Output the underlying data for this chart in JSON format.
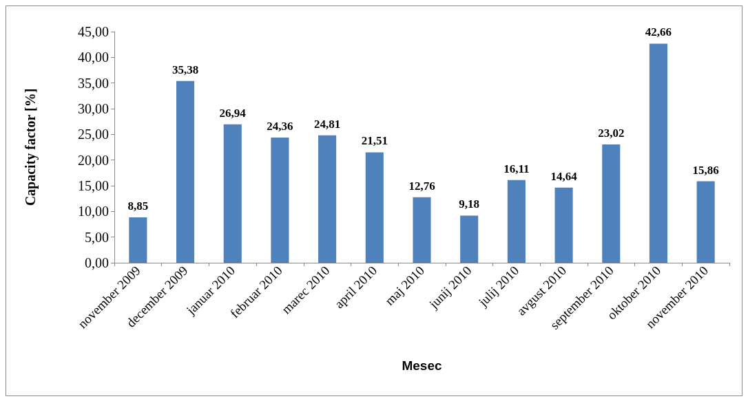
{
  "chart_data": {
    "type": "bar",
    "xlabel": "Mesec",
    "ylabel": "Capacity factor [%]",
    "categories": [
      "november 2009",
      "december 2009",
      "januar 2010",
      "februar 2010",
      "marec 2010",
      "april 2010",
      "maj 2010",
      "junij 2010",
      "julij 2010",
      "avgust 2010",
      "september 2010",
      "oktober 2010",
      "november 2010"
    ],
    "values": [
      8.85,
      35.38,
      26.94,
      24.36,
      24.81,
      21.51,
      12.76,
      9.18,
      16.11,
      14.64,
      23.02,
      42.66,
      15.86
    ],
    "value_labels": [
      "8,85",
      "35,38",
      "26,94",
      "24,36",
      "24,81",
      "21,51",
      "12,76",
      "9,18",
      "16,11",
      "14,64",
      "23,02",
      "42,66",
      "15,86"
    ],
    "color": "#4f81bd",
    "ylim": [
      0,
      45
    ],
    "yticks": [
      {
        "value": 0,
        "label": "0,00"
      },
      {
        "value": 5,
        "label": "5,00"
      },
      {
        "value": 10,
        "label": "10,00"
      },
      {
        "value": 15,
        "label": "15,00"
      },
      {
        "value": 20,
        "label": "20,00"
      },
      {
        "value": 25,
        "label": "25,00"
      },
      {
        "value": 30,
        "label": "30,00"
      },
      {
        "value": 35,
        "label": "35,00"
      },
      {
        "value": 40,
        "label": "40,00"
      },
      {
        "value": 45,
        "label": "45,00"
      }
    ]
  }
}
